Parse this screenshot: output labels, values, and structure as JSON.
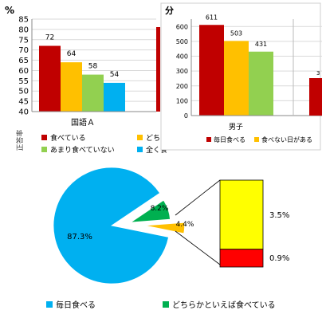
{
  "colors": {
    "red": "#C00000",
    "orange": "#FFC000",
    "green": "#92D050",
    "blue": "#00B0F0",
    "pie_blue": "#00B0F0",
    "pie_green": "#00B050",
    "pie_orange": "#FFC000",
    "detail_yellow": "#FFFF00",
    "detail_red": "#FF0000",
    "axis_red": "#C00000"
  },
  "chart_data": [
    {
      "type": "bar",
      "unit_label": "%",
      "categories": [
        "国語Ａ"
      ],
      "series": [
        {
          "name": "食べている",
          "values": [
            72
          ]
        },
        {
          "name": "どちらか",
          "values": [
            64
          ]
        },
        {
          "name": "あまり食べていない",
          "values": [
            58
          ]
        },
        {
          "name": "全く食",
          "values": [
            54
          ]
        }
      ],
      "data_labels": [
        "72",
        "64",
        "58",
        "54"
      ],
      "ylim": [
        40,
        85
      ],
      "yticks": [
        "85",
        "80",
        "75",
        "70",
        "65",
        "60",
        "55",
        "50",
        "45",
        "40"
      ],
      "side_label": "正答率",
      "grid": true,
      "legend": "bottom"
    },
    {
      "type": "bar",
      "unit_label": "分",
      "categories": [
        "男子"
      ],
      "series": [
        {
          "name": "毎日食べる",
          "values": [
            611
          ]
        },
        {
          "name": "食べない日がある",
          "values": [
            503
          ]
        },
        {
          "name": "",
          "values": [
            431
          ]
        }
      ],
      "data_labels": [
        "611",
        "503",
        "431"
      ],
      "partial_label": "3",
      "ylim": [
        0,
        650
      ],
      "yticks": [
        "600",
        "500",
        "400",
        "300",
        "200",
        "100",
        "0"
      ],
      "grid": true,
      "legend": "bottom"
    },
    {
      "type": "pie",
      "slices": [
        {
          "label": "87.3%",
          "value": 87.3
        },
        {
          "label": "8.2%",
          "value": 8.2
        },
        {
          "label": "4.4%",
          "value": 4.4
        }
      ],
      "breakdown": [
        {
          "label": "3.5%",
          "value": 3.5
        },
        {
          "label": "0.9%",
          "value": 0.9
        }
      ],
      "legend_items": [
        "毎日食べる",
        "どちらかといえば食べている"
      ],
      "legend": "bottom"
    }
  ]
}
